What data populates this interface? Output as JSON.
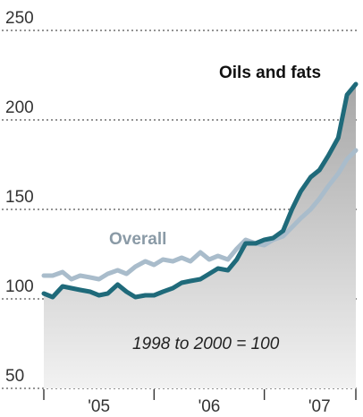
{
  "chart_data": {
    "type": "area",
    "title": "",
    "xlabel": "",
    "ylabel": "",
    "ylim": [
      50,
      250
    ],
    "yticks": [
      50,
      100,
      150,
      200,
      250
    ],
    "xlim": [
      2004.95,
      2007.85
    ],
    "xticks": [
      {
        "label": "'05",
        "x": 2005.5
      },
      {
        "label": "'06",
        "x": 2006.5
      },
      {
        "label": "'07",
        "x": 2007.5
      }
    ],
    "year_boundaries": [
      2005.0,
      2006.0,
      2007.0,
      2007.83
    ],
    "grid": true,
    "annotation": "1998 to 2000 = 100",
    "series": [
      {
        "name": "Overall",
        "color": "#a9bccb",
        "x": [
          2005.0,
          2005.08,
          2005.17,
          2005.25,
          2005.33,
          2005.42,
          2005.5,
          2005.58,
          2005.67,
          2005.75,
          2005.83,
          2005.92,
          2006.0,
          2006.08,
          2006.17,
          2006.25,
          2006.33,
          2006.42,
          2006.5,
          2006.58,
          2006.67,
          2006.75,
          2006.83,
          2006.92,
          2007.0,
          2007.08,
          2007.17,
          2007.25,
          2007.33,
          2007.42,
          2007.5,
          2007.58,
          2007.67,
          2007.75,
          2007.83
        ],
        "values": [
          113,
          113,
          115,
          111,
          113,
          112,
          111,
          114,
          116,
          114,
          118,
          121,
          119,
          122,
          121,
          123,
          121,
          126,
          122,
          124,
          122,
          128,
          133,
          131,
          130,
          133,
          135,
          140,
          145,
          150,
          156,
          163,
          170,
          178,
          183
        ]
      },
      {
        "name": "Oils and fats",
        "color": "#1f6a7a",
        "x": [
          2005.0,
          2005.08,
          2005.17,
          2005.25,
          2005.33,
          2005.42,
          2005.5,
          2005.58,
          2005.67,
          2005.75,
          2005.83,
          2005.92,
          2006.0,
          2006.08,
          2006.17,
          2006.25,
          2006.33,
          2006.42,
          2006.5,
          2006.58,
          2006.67,
          2006.75,
          2006.83,
          2006.92,
          2007.0,
          2007.08,
          2007.17,
          2007.25,
          2007.33,
          2007.42,
          2007.5,
          2007.58,
          2007.67,
          2007.75,
          2007.83
        ],
        "values": [
          103,
          101,
          107,
          106,
          105,
          104,
          102,
          103,
          108,
          104,
          101,
          102,
          102,
          104,
          106,
          109,
          110,
          111,
          114,
          117,
          116,
          122,
          131,
          131,
          133,
          134,
          138,
          150,
          160,
          168,
          172,
          180,
          190,
          214,
          220
        ]
      }
    ]
  }
}
